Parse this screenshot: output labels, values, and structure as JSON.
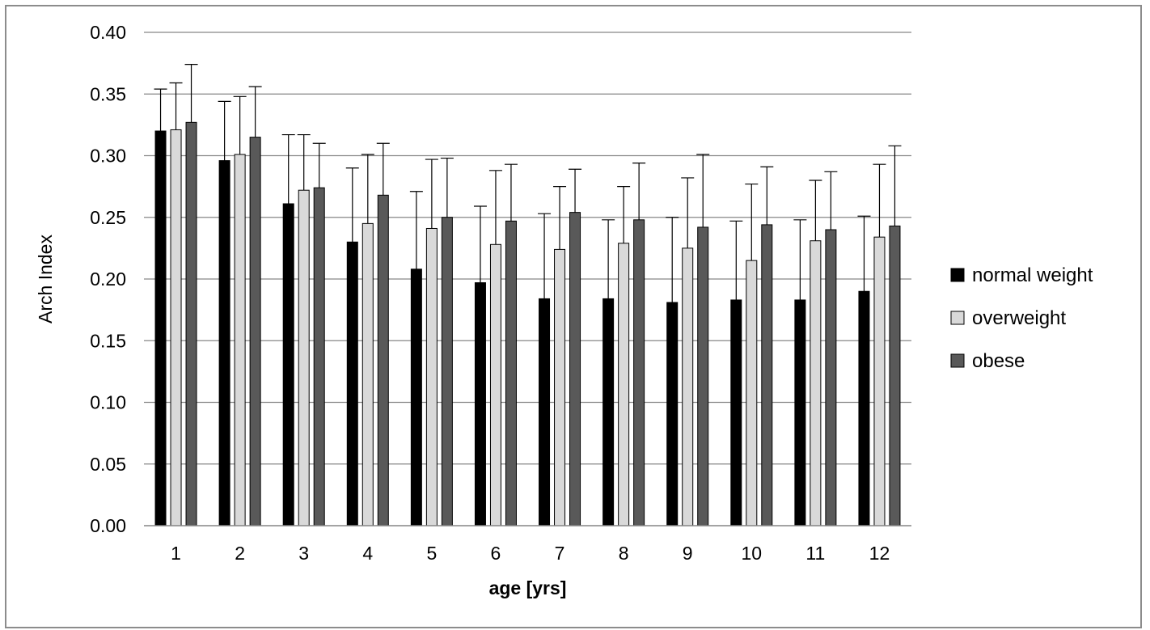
{
  "chart_data": {
    "type": "bar",
    "title": "",
    "xlabel": "age [yrs]",
    "ylabel": "Arch Index",
    "ylim": [
      0,
      0.4
    ],
    "yticks": [
      "0.00",
      "0.05",
      "0.10",
      "0.15",
      "0.20",
      "0.25",
      "0.30",
      "0.35",
      "0.40"
    ],
    "categories": [
      "1",
      "2",
      "3",
      "4",
      "5",
      "6",
      "7",
      "8",
      "9",
      "10",
      "11",
      "12"
    ],
    "grid": "horizontal",
    "legend_position": "right",
    "series": [
      {
        "name": "normal weight",
        "color": "#000000",
        "values": [
          0.32,
          0.296,
          0.261,
          0.23,
          0.208,
          0.197,
          0.184,
          0.184,
          0.181,
          0.183,
          0.183,
          0.19
        ],
        "error_upper": [
          0.354,
          0.344,
          0.317,
          0.29,
          0.271,
          0.259,
          0.253,
          0.248,
          0.25,
          0.247,
          0.248,
          0.251
        ]
      },
      {
        "name": "overweight",
        "color": "#d9d9d9",
        "values": [
          0.321,
          0.301,
          0.272,
          0.245,
          0.241,
          0.228,
          0.224,
          0.229,
          0.225,
          0.215,
          0.231,
          0.234
        ],
        "error_upper": [
          0.359,
          0.348,
          0.317,
          0.301,
          0.297,
          0.288,
          0.275,
          0.275,
          0.282,
          0.277,
          0.28,
          0.293
        ]
      },
      {
        "name": "obese",
        "color": "#595959",
        "values": [
          0.327,
          0.315,
          0.274,
          0.268,
          0.25,
          0.247,
          0.254,
          0.248,
          0.242,
          0.244,
          0.24,
          0.243
        ],
        "error_upper": [
          0.374,
          0.356,
          0.31,
          0.31,
          0.298,
          0.293,
          0.289,
          0.294,
          0.301,
          0.291,
          0.287,
          0.308
        ]
      }
    ]
  }
}
